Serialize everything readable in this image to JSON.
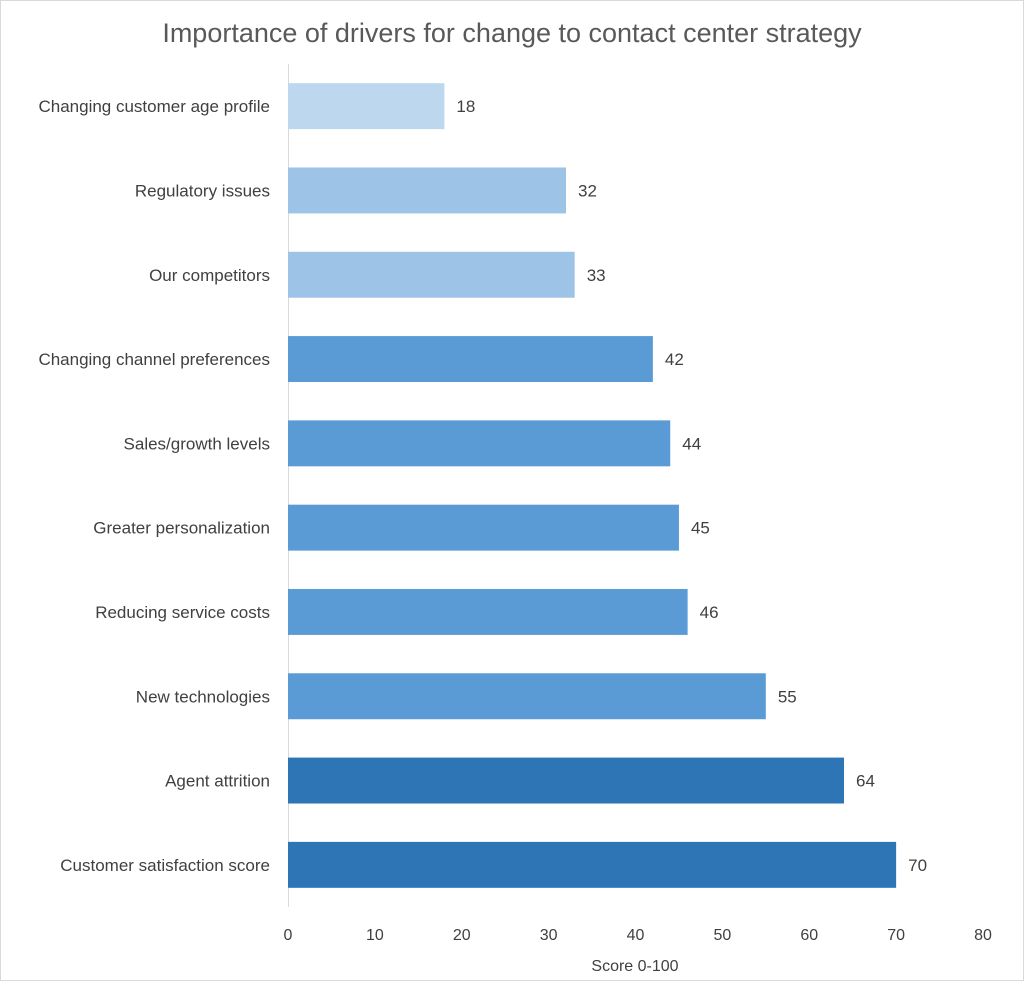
{
  "chart_data": {
    "type": "bar",
    "orientation": "horizontal",
    "title": "Importance of drivers for change to contact center strategy",
    "xlabel": "Score 0-100",
    "ylabel": "",
    "xlim": [
      0,
      80
    ],
    "xticks": [
      "0",
      "10",
      "20",
      "30",
      "40",
      "50",
      "60",
      "70",
      "80"
    ],
    "grid": false,
    "legend": "none",
    "categories": [
      "Changing customer age profile",
      "Regulatory issues",
      "Our competitors",
      "Changing channel preferences",
      "Sales/growth levels",
      "Greater personalization",
      "Reducing service costs",
      "New technologies",
      "Agent attrition",
      "Customer satisfaction score"
    ],
    "values": [
      18,
      32,
      33,
      42,
      44,
      45,
      46,
      55,
      64,
      70
    ],
    "data_labels": [
      "18",
      "32",
      "33",
      "42",
      "44",
      "45",
      "46",
      "55",
      "64",
      "70"
    ],
    "colors": [
      "#bdd7ee",
      "#9dc3e6",
      "#9dc3e6",
      "#5b9bd5",
      "#5b9bd5",
      "#5b9bd5",
      "#5b9bd5",
      "#5b9bd5",
      "#2e75b6",
      "#2e75b6"
    ],
    "axis_color": "#d9d9d9"
  }
}
